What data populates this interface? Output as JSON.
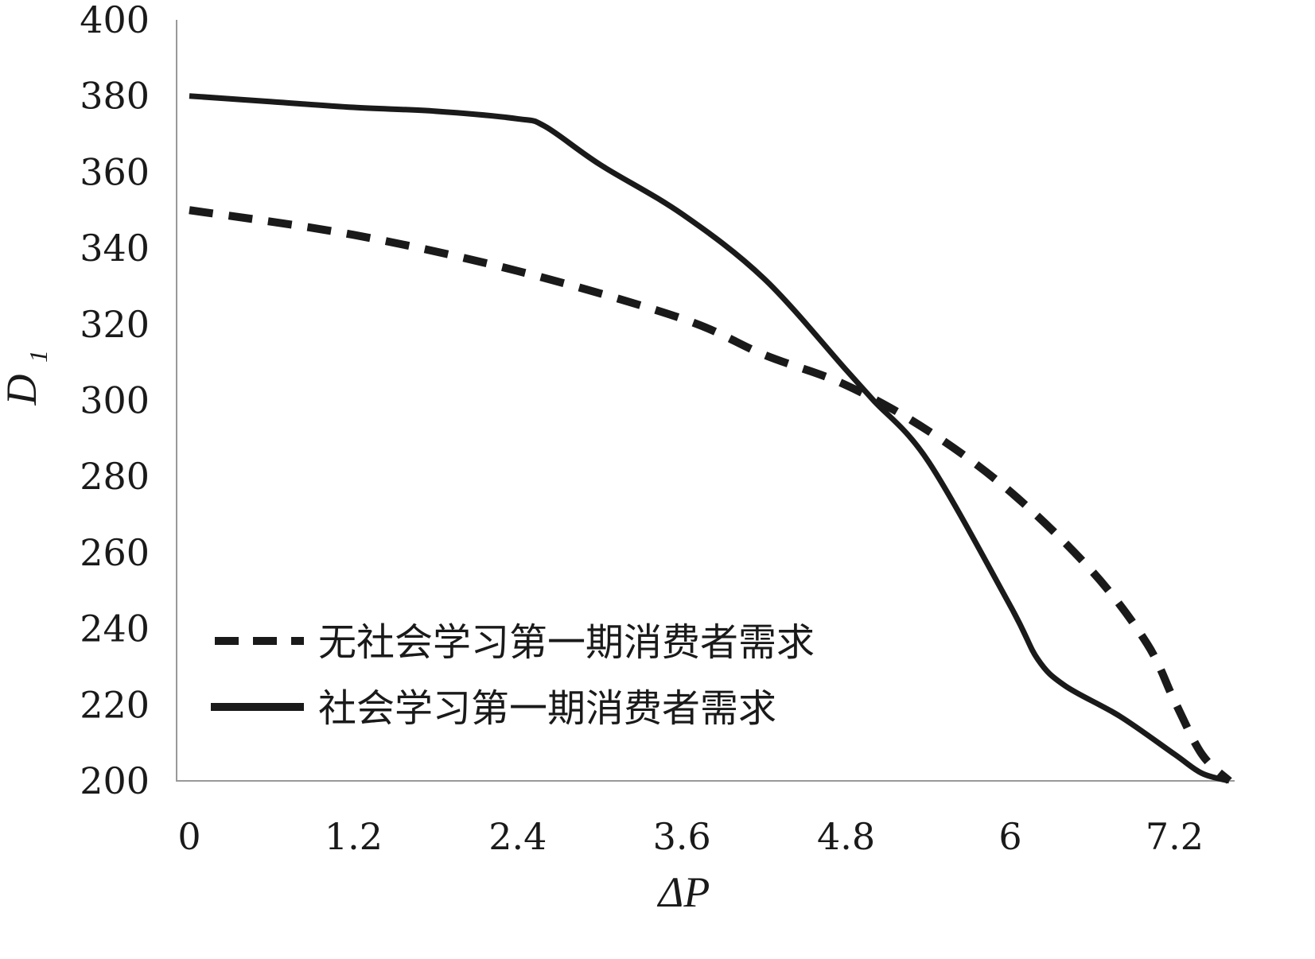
{
  "chart_data": {
    "type": "line",
    "title": "",
    "xlabel": "ΔP",
    "ylabel": "D",
    "ylabel_subscript": "1",
    "xlim": [
      0,
      7.6
    ],
    "ylim": [
      200,
      400
    ],
    "x_ticks": [
      "0",
      "1.2",
      "2.4",
      "3.6",
      "4.8",
      "6",
      "7.2"
    ],
    "x_tick_values": [
      0,
      1.2,
      2.4,
      3.6,
      4.8,
      6,
      7.2
    ],
    "y_ticks": [
      "200",
      "220",
      "240",
      "260",
      "280",
      "300",
      "320",
      "340",
      "360",
      "380",
      "400"
    ],
    "y_tick_values": [
      200,
      220,
      240,
      260,
      280,
      300,
      320,
      340,
      360,
      380,
      400
    ],
    "grid": false,
    "legend_position": "bottom-left",
    "series": [
      {
        "name": "无社会学习第一期消费者需求",
        "style": "dashed",
        "color": "#1a1a1a",
        "x": [
          0,
          1.2,
          2.4,
          3.6,
          4.2,
          4.8,
          5.4,
          6.0,
          6.6,
          7.0,
          7.2,
          7.4,
          7.6
        ],
        "y": [
          350,
          343.5,
          334,
          321.5,
          312,
          304,
          292,
          276,
          255,
          236,
          221,
          207,
          200
        ]
      },
      {
        "name": "社会学习第一期消费者需求",
        "style": "solid",
        "color": "#1a1a1a",
        "x": [
          0,
          0.6,
          1.2,
          1.8,
          2.4,
          2.6,
          3.0,
          3.6,
          4.2,
          4.8,
          5.0,
          5.4,
          6.0,
          6.2,
          6.4,
          6.8,
          7.2,
          7.4,
          7.6
        ],
        "y": [
          380,
          378.5,
          377,
          376,
          374,
          372,
          362,
          349,
          332,
          308,
          300,
          284,
          246,
          232,
          225,
          217,
          207,
          202,
          200
        ]
      }
    ]
  }
}
